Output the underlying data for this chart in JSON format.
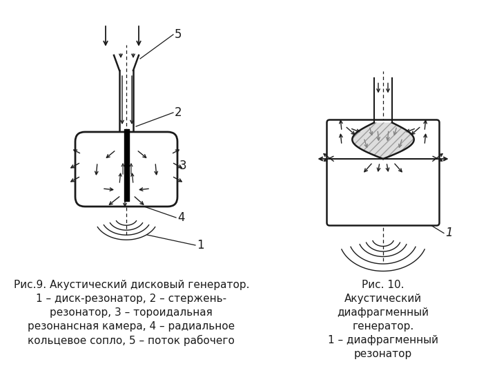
{
  "caption_left_line1": "Рис.9. Акустический дисковый генератор.",
  "caption_left_line2": "1 – диск-резонатор, 2 – стержень-",
  "caption_left_line3": "резонатор, 3 – тороидальная",
  "caption_left_line4": "резонансная камера, 4 – радиальное",
  "caption_left_line5": "кольцевое сопло, 5 – поток рабочего",
  "caption_right_line1": "Рис. 10.",
  "caption_right_line2": "Акустический",
  "caption_right_line3": "диафрагменный",
  "caption_right_line4": "генератор.",
  "caption_right_line5": "1 – диафрагменный",
  "caption_right_line6": "резонатор",
  "bg_color": "#ffffff",
  "line_color": "#1a1a1a",
  "font_size_caption": 11,
  "font_size_labels": 12
}
